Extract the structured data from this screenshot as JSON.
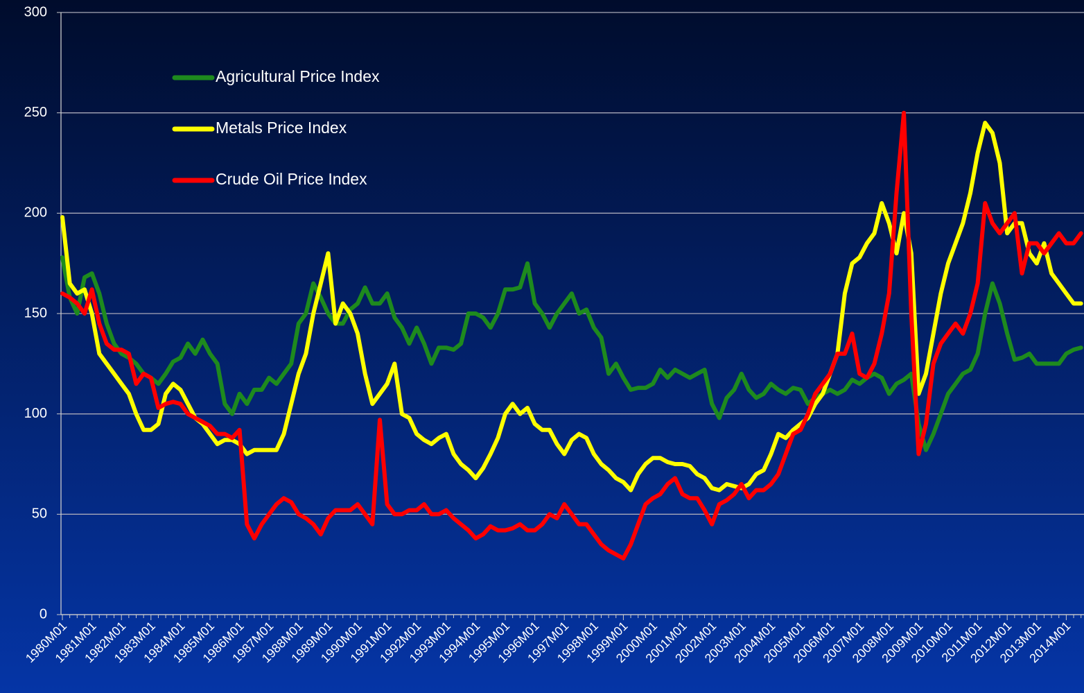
{
  "chart_data": {
    "type": "line",
    "categories": [
      "1980M01",
      null,
      null,
      null,
      "1981M01",
      null,
      null,
      null,
      "1982M01",
      null,
      null,
      null,
      "1983M01",
      null,
      null,
      null,
      "1984M01",
      null,
      null,
      null,
      "1985M01",
      null,
      null,
      null,
      "1986M01",
      null,
      null,
      null,
      "1987M01",
      null,
      null,
      null,
      "1988M01",
      null,
      null,
      null,
      "1989M01",
      null,
      null,
      null,
      "1990M01",
      null,
      null,
      null,
      "1991M01",
      null,
      null,
      null,
      "1992M01",
      null,
      null,
      null,
      "1993M01",
      null,
      null,
      null,
      "1994M01",
      null,
      null,
      null,
      "1995M01",
      null,
      null,
      null,
      "1996M01",
      null,
      null,
      null,
      "1997M01",
      null,
      null,
      null,
      "1998M01",
      null,
      null,
      null,
      "1999M01",
      null,
      null,
      null,
      "2000M01",
      null,
      null,
      null,
      "2001M01",
      null,
      null,
      null,
      "2002M01",
      null,
      null,
      null,
      "2003M01",
      null,
      null,
      null,
      "2004M01",
      null,
      null,
      null,
      "2005M01",
      null,
      null,
      null,
      "2006M01",
      null,
      null,
      null,
      "2007M01",
      null,
      null,
      null,
      "2008M01",
      null,
      null,
      null,
      "2009M01",
      null,
      null,
      null,
      "2010M01",
      null,
      null,
      null,
      "2011M01",
      null,
      null,
      null,
      "2012M01",
      null,
      null,
      null,
      "2013M01",
      null,
      null,
      null,
      "2014M01",
      null,
      null
    ],
    "series": [
      {
        "name": "Agricultural Price Index",
        "color": "#1e8a1e",
        "values": [
          178,
          158,
          150,
          168,
          170,
          160,
          145,
          135,
          130,
          128,
          125,
          120,
          118,
          115,
          120,
          126,
          128,
          135,
          130,
          137,
          130,
          125,
          105,
          100,
          110,
          105,
          112,
          112,
          118,
          115,
          120,
          125,
          145,
          150,
          165,
          158,
          150,
          145,
          145,
          152,
          155,
          163,
          155,
          155,
          160,
          148,
          143,
          135,
          143,
          135,
          125,
          133,
          133,
          132,
          135,
          150,
          150,
          148,
          143,
          150,
          162,
          162,
          163,
          175,
          155,
          150,
          143,
          150,
          155,
          160,
          150,
          152,
          143,
          138,
          120,
          125,
          118,
          112,
          113,
          113,
          115,
          122,
          118,
          122,
          120,
          118,
          120,
          122,
          105,
          98,
          108,
          112,
          120,
          112,
          108,
          110,
          115,
          112,
          110,
          113,
          112,
          105,
          108,
          110,
          112,
          110,
          112,
          117,
          115,
          118,
          120,
          118,
          110,
          115,
          117,
          120,
          95,
          82,
          90,
          100,
          110,
          115,
          120,
          122,
          130,
          150,
          165,
          155,
          140,
          127,
          128,
          130,
          125,
          125,
          125,
          125,
          130,
          132,
          133
        ]
      },
      {
        "name": "Metals Price Index",
        "color": "#ffff00",
        "values": [
          198,
          165,
          160,
          162,
          150,
          130,
          125,
          120,
          115,
          110,
          100,
          92,
          92,
          95,
          110,
          115,
          112,
          105,
          98,
          95,
          90,
          85,
          87,
          87,
          85,
          80,
          82,
          82,
          82,
          82,
          90,
          105,
          120,
          130,
          150,
          165,
          180,
          145,
          155,
          150,
          140,
          120,
          105,
          110,
          115,
          125,
          100,
          98,
          90,
          87,
          85,
          88,
          90,
          80,
          75,
          72,
          68,
          73,
          80,
          88,
          100,
          105,
          100,
          103,
          95,
          92,
          92,
          85,
          80,
          87,
          90,
          88,
          80,
          75,
          72,
          68,
          66,
          62,
          70,
          75,
          78,
          78,
          76,
          75,
          75,
          74,
          70,
          68,
          63,
          62,
          65,
          64,
          63,
          65,
          70,
          72,
          80,
          90,
          88,
          92,
          95,
          98,
          105,
          110,
          120,
          130,
          160,
          175,
          178,
          185,
          190,
          205,
          195,
          180,
          200,
          180,
          110,
          120,
          140,
          160,
          175,
          185,
          195,
          210,
          230,
          245,
          240,
          225,
          190,
          195,
          195,
          180,
          175,
          185,
          170,
          165,
          160,
          155,
          155
        ]
      },
      {
        "name": "Crude Oil Price Index",
        "color": "#ff0000",
        "values": [
          160,
          158,
          155,
          150,
          162,
          145,
          135,
          132,
          132,
          130,
          115,
          120,
          118,
          103,
          105,
          106,
          105,
          100,
          98,
          96,
          94,
          90,
          90,
          88,
          92,
          45,
          38,
          45,
          50,
          55,
          58,
          56,
          50,
          48,
          45,
          40,
          48,
          52,
          52,
          52,
          55,
          50,
          45,
          97,
          55,
          50,
          50,
          52,
          52,
          55,
          50,
          50,
          52,
          48,
          45,
          42,
          38,
          40,
          44,
          42,
          42,
          43,
          45,
          42,
          42,
          45,
          50,
          48,
          55,
          50,
          45,
          45,
          40,
          35,
          32,
          30,
          28,
          35,
          45,
          55,
          58,
          60,
          65,
          68,
          60,
          58,
          58,
          52,
          45,
          55,
          57,
          60,
          65,
          58,
          62,
          62,
          65,
          70,
          80,
          90,
          92,
          100,
          110,
          115,
          120,
          130,
          130,
          140,
          120,
          118,
          125,
          140,
          160,
          210,
          250,
          150,
          80,
          95,
          125,
          135,
          140,
          145,
          140,
          150,
          165,
          205,
          195,
          190,
          195,
          200,
          170,
          185,
          185,
          180,
          185,
          190,
          185,
          185,
          190
        ]
      }
    ],
    "ylim": [
      0,
      300
    ],
    "yticks": [
      0,
      50,
      100,
      150,
      200,
      250,
      300
    ],
    "grid": true
  }
}
